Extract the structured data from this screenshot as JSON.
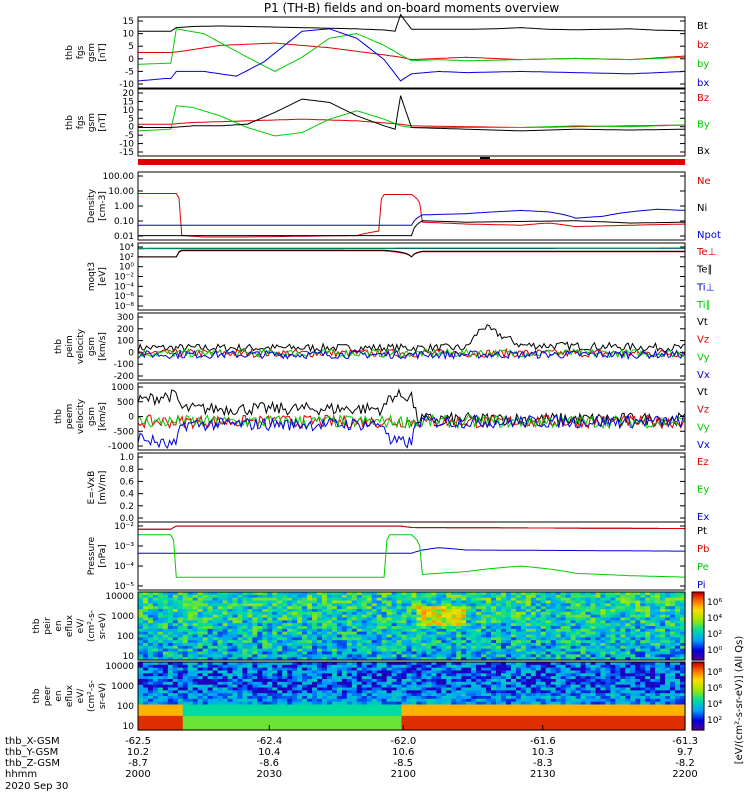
{
  "title": "P1 (TH-B) fields and on-board moments overview",
  "colors": {
    "black": "#000000",
    "red": "#dd0000",
    "green": "#00cc00",
    "blue": "#0000dd"
  },
  "date_label": "2020 Sep 30",
  "x_axis": {
    "rows": [
      {
        "label": "thb_X-GSM",
        "values": [
          "-62.5",
          "-62.4",
          "-62.0",
          "-61.6",
          "-61.3"
        ]
      },
      {
        "label": "thb_Y-GSM",
        "values": [
          "10.2",
          "10.4",
          "10.6",
          "10.3",
          "9.7"
        ]
      },
      {
        "label": "thb_Z-GSM",
        "values": [
          "-8.7",
          "-8.6",
          "-8.5",
          "-8.3",
          "-8.2"
        ]
      },
      {
        "label": "hhmm",
        "values": [
          "2000",
          "2030",
          "2100",
          "2130",
          "2200"
        ]
      }
    ]
  },
  "chart_data": [
    {
      "type": "line",
      "ylabel": [
        "thb",
        "fgs",
        "gsm",
        "[nT]"
      ],
      "ylim": [
        -15,
        15
      ],
      "yticks": [
        "15",
        "10",
        "5",
        "0",
        "-5",
        "-10"
      ],
      "legend": [
        {
          "label": "Bt",
          "color": "black"
        },
        {
          "label": "bz",
          "color": "red"
        },
        {
          "label": "by",
          "color": "green"
        },
        {
          "label": "bx",
          "color": "blue"
        }
      ],
      "series": [
        {
          "name": "Bt",
          "color": "black",
          "x": [
            0,
            0.06,
            0.07,
            0.1,
            0.15,
            0.2,
            0.3,
            0.4,
            0.45,
            0.47,
            0.48,
            0.5,
            0.55,
            0.6,
            0.65,
            0.7,
            0.75,
            0.8,
            0.85,
            0.9,
            0.95,
            1.0
          ],
          "values": [
            9,
            9,
            10.5,
            11,
            11.2,
            11,
            10.5,
            10,
            9.5,
            9,
            16,
            9.8,
            9.8,
            9.8,
            10,
            10.5,
            9.8,
            9.6,
            9.8,
            10,
            9.4,
            9.2
          ]
        },
        {
          "name": "bz",
          "color": "red",
          "x": [
            0,
            0.06,
            0.08,
            0.15,
            0.25,
            0.35,
            0.45,
            0.48,
            0.5,
            0.55,
            0.6,
            0.7,
            0.8,
            0.9,
            1.0
          ],
          "values": [
            0,
            0,
            0.5,
            3,
            4,
            2,
            -1,
            -2,
            -3,
            -2.5,
            -2,
            -3,
            -2.5,
            -3,
            -1.5
          ]
        },
        {
          "name": "by",
          "color": "green",
          "x": [
            0,
            0.06,
            0.07,
            0.12,
            0.2,
            0.25,
            0.3,
            0.35,
            0.4,
            0.45,
            0.48,
            0.5,
            0.55,
            0.6,
            0.7,
            0.8,
            0.9,
            1.0
          ],
          "values": [
            -5,
            -4.5,
            10,
            8,
            -2,
            -8,
            -2,
            6,
            8,
            3,
            -1,
            -3.5,
            -3,
            -3.5,
            -3,
            -2.5,
            -3,
            -2
          ]
        },
        {
          "name": "bx",
          "color": "blue",
          "x": [
            0,
            0.05,
            0.06,
            0.07,
            0.12,
            0.18,
            0.23,
            0.3,
            0.35,
            0.4,
            0.45,
            0.48,
            0.5,
            0.55,
            0.6,
            0.7,
            0.8,
            0.9,
            1.0
          ],
          "values": [
            -12,
            -11,
            -11,
            -8,
            -8,
            -10,
            -4,
            9,
            10,
            6,
            -3,
            -12,
            -9,
            -8,
            -8.5,
            -8,
            -8.5,
            -9,
            -8
          ]
        }
      ]
    },
    {
      "type": "line",
      "ylabel": [
        "thb",
        "fgs",
        "gsm",
        "[nT]"
      ],
      "ylim": [
        -20,
        20
      ],
      "yticks": [
        "20",
        "15",
        "10",
        "5",
        "0",
        "-5",
        "-10",
        "-15"
      ],
      "legend": [
        {
          "label": "Bz",
          "color": "red"
        },
        {
          "label": "By",
          "color": "green"
        },
        {
          "label": "Bx",
          "color": "black"
        }
      ],
      "series": [
        {
          "name": "Bz",
          "color": "red",
          "x": [
            0,
            0.06,
            0.1,
            0.2,
            0.3,
            0.4,
            0.48,
            0.5,
            0.6,
            0.7,
            0.8,
            0.9,
            1.0
          ],
          "values": [
            -1,
            -1,
            0,
            1,
            2,
            1,
            -1,
            -2,
            -2.5,
            -3,
            -2.5,
            -2,
            -1.5
          ]
        },
        {
          "name": "By",
          "color": "green",
          "x": [
            0,
            0.06,
            0.07,
            0.1,
            0.15,
            0.2,
            0.25,
            0.3,
            0.35,
            0.4,
            0.45,
            0.48,
            0.5,
            0.6,
            0.7,
            0.8,
            0.9,
            1.0
          ],
          "values": [
            -5,
            -4,
            10,
            9,
            4,
            -3,
            -8,
            -6,
            2,
            7,
            2,
            -2,
            -3,
            -3,
            -3,
            -2,
            -2.5,
            -1.5
          ]
        },
        {
          "name": "Bx",
          "color": "black",
          "x": [
            0,
            0.06,
            0.1,
            0.15,
            0.2,
            0.25,
            0.3,
            0.35,
            0.4,
            0.45,
            0.47,
            0.48,
            0.5,
            0.6,
            0.7,
            0.8,
            0.9,
            1.0
          ],
          "values": [
            -3,
            -3,
            -2,
            -2,
            -1,
            6,
            14,
            12,
            4,
            -2,
            -4,
            16,
            -3,
            -4,
            -5,
            -4,
            -4.5,
            -4
          ]
        }
      ]
    },
    {
      "type": "line",
      "ylabel": [
        "Density",
        "[cm-3]"
      ],
      "scale": "log",
      "ylim": [
        0.005,
        200
      ],
      "yticks": [
        "100.00",
        "10.00",
        "1.00",
        "0.10",
        "0.01"
      ],
      "legend": [
        {
          "label": "Ne",
          "color": "red"
        },
        {
          "label": "Ni",
          "color": "black"
        },
        {
          "label": "Npot",
          "color": "blue"
        }
      ],
      "series": [
        {
          "name": "Ne",
          "color": "red",
          "x": [
            0,
            0.07,
            0.08,
            0.12,
            0.2,
            0.3,
            0.4,
            0.44,
            0.45,
            0.5,
            0.52,
            0.6,
            0.7,
            0.75,
            0.8,
            0.9,
            1.0
          ],
          "values": [
            7,
            7,
            0.01,
            0.008,
            0.008,
            0.009,
            0.01,
            0.02,
            6,
            6,
            0.08,
            0.06,
            0.05,
            0.07,
            0.04,
            0.05,
            0.06
          ]
        },
        {
          "name": "Ni",
          "color": "black",
          "x": [
            0,
            0.07,
            0.08,
            0.44,
            0.45,
            0.5,
            0.52,
            0.6,
            0.7,
            0.8,
            0.9,
            1.0
          ],
          "values": [
            0.01,
            0.01,
            0.01,
            0.01,
            0.01,
            0.01,
            0.1,
            0.08,
            0.09,
            0.1,
            0.07,
            0.08
          ]
        },
        {
          "name": "Npot",
          "color": "blue",
          "x": [
            0.5,
            0.52,
            0.6,
            0.65,
            0.7,
            0.75,
            0.8,
            0.85,
            0.9,
            0.95,
            1.0
          ],
          "values": [
            0.05,
            0.25,
            0.3,
            0.4,
            0.5,
            0.4,
            0.15,
            0.2,
            0.4,
            0.6,
            0.5
          ]
        }
      ]
    },
    {
      "type": "line",
      "ylabel": [
        "moqt3",
        "[eV]"
      ],
      "scale": "log",
      "ylim": [
        1e-09,
        10000.0
      ],
      "yticks": [
        "10⁴",
        "10²",
        "10⁰",
        "10⁻²",
        "10⁻⁴",
        "10⁻⁶",
        "10⁻⁸"
      ],
      "legend": [
        {
          "label": "Te⊥",
          "color": "red"
        },
        {
          "label": "Te∥",
          "color": "black"
        },
        {
          "label": "Ti⊥",
          "color": "blue"
        },
        {
          "label": "Ti∥",
          "color": "green"
        }
      ],
      "series": [
        {
          "name": "Te⊥",
          "color": "red",
          "x": [
            0,
            0.07,
            0.08,
            0.45,
            0.5,
            0.52,
            1.0
          ],
          "values": [
            20,
            20,
            300,
            300,
            20,
            200,
            200
          ]
        },
        {
          "name": "Te∥",
          "color": "black",
          "x": [
            0,
            0.07,
            0.08,
            0.45,
            0.5,
            0.52,
            1.0
          ],
          "values": [
            20,
            20,
            400,
            400,
            20,
            250,
            250
          ]
        },
        {
          "name": "Ti⊥",
          "color": "blue",
          "x": [
            0,
            1.0
          ],
          "values": [
            800,
            900
          ]
        },
        {
          "name": "Ti∥",
          "color": "green",
          "x": [
            0,
            1.0
          ],
          "values": [
            1000,
            1100
          ]
        }
      ]
    },
    {
      "type": "line",
      "ylabel": [
        "thb",
        "peim",
        "velocity",
        "gsm",
        "[km/s]"
      ],
      "ylim": [
        -200,
        300
      ],
      "yticks": [
        "300",
        "200",
        "100",
        "0",
        "-100",
        "-200"
      ],
      "legend": [
        {
          "label": "Vt",
          "color": "black"
        },
        {
          "label": "Vz",
          "color": "red"
        },
        {
          "label": "Vy",
          "color": "green"
        },
        {
          "label": "Vx",
          "color": "blue"
        }
      ],
      "series": [
        {
          "name": "Vt",
          "color": "black",
          "x": [
            0,
            0.3,
            0.5,
            0.6,
            0.63,
            0.7,
            1.0
          ],
          "values": [
            40,
            40,
            40,
            40,
            200,
            60,
            40
          ]
        },
        {
          "name": "Vz",
          "color": "red",
          "x": [
            0,
            1.0
          ],
          "values": [
            0,
            0
          ]
        },
        {
          "name": "Vy",
          "color": "green",
          "x": [
            0,
            1.0
          ],
          "values": [
            0,
            0
          ]
        },
        {
          "name": "Vx",
          "color": "blue",
          "x": [
            0,
            1.0
          ],
          "values": [
            -10,
            -10
          ]
        }
      ]
    },
    {
      "type": "line",
      "ylabel": [
        "thb",
        "peem",
        "velocity",
        "gsm",
        "[km/s]"
      ],
      "ylim": [
        -1100,
        1500
      ],
      "yticks": [
        "1000",
        "500",
        "0",
        "-500",
        "-1000"
      ],
      "legend": [
        {
          "label": "Vt",
          "color": "black"
        },
        {
          "label": "Vz",
          "color": "red"
        },
        {
          "label": "Vy",
          "color": "green"
        },
        {
          "label": "Vx",
          "color": "blue"
        }
      ],
      "series": [
        {
          "name": "Vt",
          "color": "black",
          "x": [
            0,
            0.05,
            0.07,
            0.08,
            0.45,
            0.46,
            0.5,
            0.51,
            1.0
          ],
          "values": [
            800,
            1000,
            1000,
            500,
            500,
            1000,
            1000,
            100,
            100
          ]
        },
        {
          "name": "Vz",
          "color": "red",
          "x": [
            0,
            1.0
          ],
          "values": [
            0,
            0
          ]
        },
        {
          "name": "Vy",
          "color": "green",
          "x": [
            0,
            1.0
          ],
          "values": [
            0,
            0
          ]
        },
        {
          "name": "Vx",
          "color": "blue",
          "x": [
            0,
            0.05,
            0.07,
            0.08,
            0.45,
            0.46,
            0.5,
            0.51,
            1.0
          ],
          "values": [
            -600,
            -900,
            -900,
            -100,
            -100,
            -800,
            -800,
            0,
            0
          ]
        }
      ]
    },
    {
      "type": "line",
      "ylabel": [
        "E=-VxB",
        "[mV/m]"
      ],
      "ylim": [
        0,
        1
      ],
      "yticks": [
        "1.0",
        "0.8",
        "0.6",
        "0.4",
        "0.2",
        "0.0"
      ],
      "legend": [
        {
          "label": "Ez",
          "color": "red"
        },
        {
          "label": "Ey",
          "color": "green"
        },
        {
          "label": "Ex",
          "color": "blue"
        }
      ],
      "series": []
    },
    {
      "type": "line",
      "ylabel": [
        "Pressure",
        "[nPa]"
      ],
      "scale": "log",
      "ylim": [
        1e-05,
        0.05
      ],
      "yticks": [
        "10⁻²",
        "10⁻³",
        "10⁻⁴",
        "10⁻⁵"
      ],
      "legend": [
        {
          "label": "Pt",
          "color": "black"
        },
        {
          "label": "Pb",
          "color": "red"
        },
        {
          "label": "Pe",
          "color": "green"
        },
        {
          "label": "Pi",
          "color": "blue"
        }
      ],
      "series": [
        {
          "name": "Pt",
          "color": "black",
          "x": [
            0,
            0.06,
            0.07,
            0.48,
            0.5,
            1.0
          ],
          "values": [
            0.02,
            0.02,
            0.03,
            0.03,
            0.025,
            0.022
          ]
        },
        {
          "name": "Pb",
          "color": "red",
          "x": [
            0,
            0.06,
            0.07,
            0.48,
            0.5,
            1.0
          ],
          "values": [
            0.02,
            0.02,
            0.03,
            0.03,
            0.025,
            0.022
          ]
        },
        {
          "name": "Pi",
          "color": "blue",
          "x": [
            0,
            0.06,
            0.08,
            0.5,
            0.52,
            0.55,
            0.6,
            1.0
          ],
          "values": [
            0.001,
            0.001,
            0.001,
            0.001,
            0.0015,
            0.002,
            0.0015,
            0.0013
          ]
        },
        {
          "name": "Pe",
          "color": "green",
          "x": [
            0,
            0.06,
            0.07,
            0.45,
            0.46,
            0.5,
            0.52,
            0.6,
            0.7,
            0.8,
            0.9,
            1.0
          ],
          "values": [
            0.01,
            0.01,
            5e-05,
            5e-05,
            0.01,
            0.01,
            7e-05,
            0.0001,
            0.0002,
            8e-05,
            6e-05,
            5e-05
          ]
        }
      ]
    },
    {
      "type": "heatmap",
      "ylabel": [
        "thb",
        "peir",
        "en",
        "eflux",
        "eV/",
        "(cm²-s-",
        "sr-eV)"
      ],
      "scale": "log",
      "ylim": [
        6,
        30000
      ],
      "yticks": [
        "10000",
        "1000",
        "100",
        "10"
      ]
    },
    {
      "type": "heatmap",
      "ylabel": [
        "thb",
        "peer",
        "en",
        "eflux",
        "eV/",
        "(cm²-s-",
        "sr-eV)"
      ],
      "scale": "log",
      "ylim": [
        6,
        30000
      ],
      "yticks": [
        "10000",
        "1000",
        "100",
        "10"
      ]
    }
  ],
  "colorbar_label": "[eV/(cm²-s-sr-eV)] (All Qs)",
  "colorbar_ticks_1": [
    "10⁶",
    "10⁴",
    "10²",
    "10⁰"
  ],
  "colorbar_ticks_2": [
    "10⁸",
    "10⁶",
    "10⁴",
    "10²"
  ]
}
